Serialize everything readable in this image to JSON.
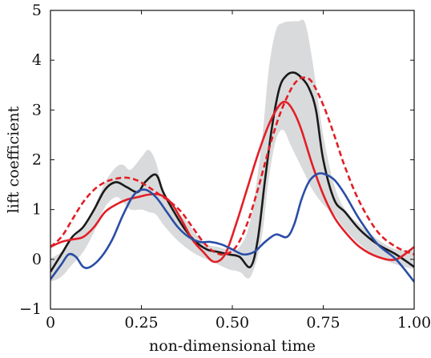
{
  "chart_data": {
    "type": "line",
    "xlabel": "non-dimensional time",
    "ylabel": "lift coefficient",
    "xlim": [
      0,
      1
    ],
    "ylim": [
      -1,
      5
    ],
    "x_ticks": [
      0,
      0.25,
      0.5,
      0.75,
      1.0
    ],
    "x_tick_labels": [
      "0",
      "0.25",
      "0.50",
      "0.75",
      "1.00"
    ],
    "y_ticks": [
      -1,
      0,
      1,
      2,
      3,
      4,
      5
    ],
    "y_tick_labels": [
      "−1",
      "0",
      "1",
      "2",
      "3",
      "4",
      "5"
    ],
    "grid": false,
    "legend": "none",
    "band": {
      "color": "#d9dadb",
      "x": [
        0.0,
        0.03,
        0.06,
        0.09,
        0.12,
        0.15,
        0.18,
        0.2,
        0.22,
        0.25,
        0.27,
        0.29,
        0.31,
        0.34,
        0.37,
        0.4,
        0.43,
        0.46,
        0.49,
        0.52,
        0.55,
        0.58,
        0.6,
        0.62,
        0.64,
        0.66,
        0.68,
        0.7,
        0.72,
        0.75,
        0.78,
        0.81,
        0.85,
        0.9,
        0.95,
        1.0
      ],
      "upper": [
        0.02,
        0.15,
        0.4,
        0.65,
        1.05,
        1.55,
        1.85,
        1.9,
        1.8,
        2.05,
        2.2,
        1.95,
        1.4,
        1.0,
        0.8,
        0.5,
        0.3,
        0.25,
        0.2,
        0.25,
        0.8,
        2.3,
        3.8,
        4.6,
        4.75,
        4.78,
        4.78,
        4.75,
        4.0,
        2.5,
        1.5,
        1.0,
        0.7,
        0.4,
        0.2,
        0.2
      ],
      "lower": [
        -0.45,
        -0.35,
        -0.1,
        0.15,
        0.55,
        1.05,
        1.25,
        1.15,
        1.0,
        1.0,
        0.95,
        0.9,
        0.7,
        0.45,
        0.25,
        0.1,
        0.0,
        -0.1,
        -0.2,
        -0.25,
        -0.35,
        0.4,
        1.6,
        2.4,
        2.6,
        2.3,
        2.0,
        1.7,
        1.4,
        1.1,
        0.9,
        0.6,
        0.3,
        0.05,
        -0.1,
        -0.2
      ]
    },
    "series": [
      {
        "color": "#1a1a1a",
        "dash": "solid",
        "x": [
          0.0,
          0.03,
          0.06,
          0.09,
          0.12,
          0.15,
          0.18,
          0.21,
          0.24,
          0.26,
          0.29,
          0.31,
          0.34,
          0.37,
          0.4,
          0.43,
          0.46,
          0.49,
          0.52,
          0.55,
          0.57,
          0.59,
          0.61,
          0.63,
          0.65,
          0.67,
          0.69,
          0.71,
          0.73,
          0.75,
          0.78,
          0.81,
          0.85,
          0.9,
          0.95,
          1.0
        ],
        "y": [
          -0.25,
          0.1,
          0.45,
          0.65,
          1.0,
          1.4,
          1.55,
          1.45,
          1.35,
          1.55,
          1.7,
          1.35,
          0.95,
          0.6,
          0.35,
          0.2,
          0.15,
          0.1,
          0.05,
          -0.15,
          0.4,
          1.6,
          2.7,
          3.45,
          3.7,
          3.75,
          3.65,
          3.45,
          3.0,
          2.0,
          1.2,
          0.95,
          0.6,
          0.3,
          0.1,
          -0.15
        ]
      },
      {
        "color": "#e21e26",
        "dash": "solid",
        "x": [
          0.0,
          0.03,
          0.06,
          0.09,
          0.12,
          0.15,
          0.18,
          0.21,
          0.24,
          0.27,
          0.3,
          0.33,
          0.36,
          0.39,
          0.42,
          0.45,
          0.48,
          0.51,
          0.54,
          0.57,
          0.6,
          0.63,
          0.65,
          0.67,
          0.69,
          0.72,
          0.75,
          0.78,
          0.81,
          0.85,
          0.9,
          0.95,
          1.0
        ],
        "y": [
          0.25,
          0.35,
          0.4,
          0.45,
          0.65,
          0.95,
          1.1,
          1.2,
          1.25,
          1.3,
          1.3,
          1.15,
          0.8,
          0.4,
          0.15,
          -0.05,
          0.1,
          0.7,
          1.4,
          2.1,
          2.7,
          3.1,
          3.15,
          2.95,
          2.6,
          1.9,
          1.3,
          0.85,
          0.55,
          0.25,
          0.05,
          0.0,
          0.25
        ]
      },
      {
        "color": "#e21e26",
        "dash": "dashed",
        "x": [
          0.0,
          0.03,
          0.06,
          0.09,
          0.12,
          0.15,
          0.18,
          0.21,
          0.24,
          0.27,
          0.3,
          0.33,
          0.36,
          0.39,
          0.42,
          0.45,
          0.48,
          0.51,
          0.54,
          0.57,
          0.6,
          0.63,
          0.66,
          0.68,
          0.7,
          0.72,
          0.75,
          0.78,
          0.81,
          0.85,
          0.9,
          0.95,
          1.0
        ],
        "y": [
          0.25,
          0.45,
          0.8,
          1.15,
          1.4,
          1.55,
          1.62,
          1.64,
          1.58,
          1.45,
          1.3,
          1.15,
          0.95,
          0.65,
          0.35,
          0.15,
          0.1,
          0.25,
          0.7,
          1.4,
          2.2,
          2.9,
          3.4,
          3.6,
          3.65,
          3.55,
          3.1,
          2.5,
          1.85,
          1.15,
          0.55,
          0.25,
          0.1
        ]
      },
      {
        "color": "#2a4ea6",
        "dash": "solid",
        "x": [
          0.0,
          0.03,
          0.05,
          0.07,
          0.09,
          0.11,
          0.14,
          0.17,
          0.2,
          0.23,
          0.26,
          0.29,
          0.32,
          0.35,
          0.38,
          0.41,
          0.44,
          0.47,
          0.5,
          0.53,
          0.56,
          0.59,
          0.62,
          0.65,
          0.67,
          0.69,
          0.71,
          0.73,
          0.75,
          0.78,
          0.81,
          0.85,
          0.9,
          0.95,
          1.0
        ],
        "y": [
          -0.4,
          -0.1,
          0.1,
          0.05,
          -0.15,
          -0.15,
          0.05,
          0.4,
          0.9,
          1.3,
          1.4,
          1.25,
          0.95,
          0.65,
          0.45,
          0.35,
          0.35,
          0.3,
          0.2,
          0.1,
          0.15,
          0.35,
          0.5,
          0.45,
          0.7,
          1.2,
          1.55,
          1.7,
          1.72,
          1.6,
          1.3,
          0.8,
          0.3,
          0.0,
          -0.45
        ]
      }
    ]
  }
}
